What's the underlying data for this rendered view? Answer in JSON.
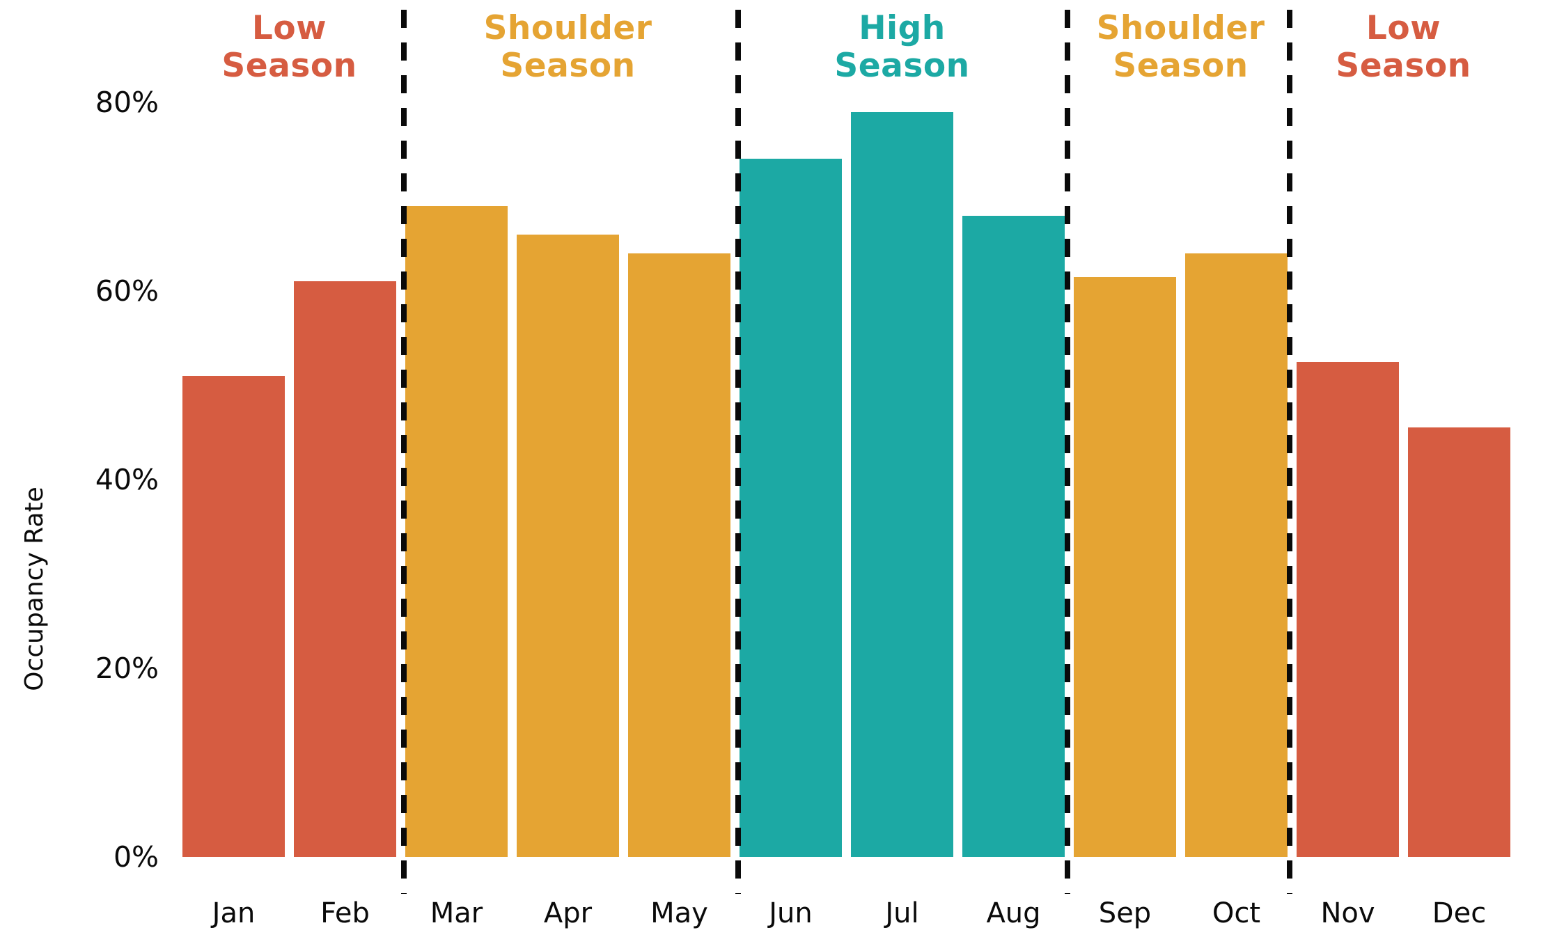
{
  "chart_data": {
    "type": "bar",
    "title": "",
    "xlabel": "",
    "ylabel": "Occupancy Rate",
    "ylim": [
      0,
      84
    ],
    "grid": false,
    "legend": "none",
    "categories": [
      "Jan",
      "Feb",
      "Mar",
      "Apr",
      "May",
      "Jun",
      "Jul",
      "Aug",
      "Sep",
      "Oct",
      "Nov",
      "Dec"
    ],
    "values": [
      51,
      61,
      69,
      66,
      64,
      74,
      79,
      68,
      61.5,
      64,
      52.5,
      45.5
    ],
    "bar_colors": [
      "#D65C41",
      "#D65C41",
      "#E5A433",
      "#E5A433",
      "#E5A433",
      "#1CA9A4",
      "#1CA9A4",
      "#1CA9A4",
      "#E5A433",
      "#E5A433",
      "#D65C41",
      "#D65C41"
    ],
    "yticks": [
      {
        "value": 0,
        "label": "0%"
      },
      {
        "value": 20,
        "label": "20%"
      },
      {
        "value": 40,
        "label": "40%"
      },
      {
        "value": 60,
        "label": "60%"
      },
      {
        "value": 80,
        "label": "80%"
      }
    ],
    "seasons": [
      {
        "label": "Low Season",
        "line1": "Low",
        "line2": "Season",
        "color": "#D65C41",
        "months": [
          "Jan",
          "Feb"
        ]
      },
      {
        "label": "Shoulder Season",
        "line1": "Shoulder",
        "line2": "Season",
        "color": "#E5A433",
        "months": [
          "Mar",
          "Apr",
          "May"
        ]
      },
      {
        "label": "High Season",
        "line1": "High",
        "line2": "Season",
        "color": "#1CA9A4",
        "months": [
          "Jun",
          "Jul",
          "Aug"
        ]
      },
      {
        "label": "Shoulder Season",
        "line1": "Shoulder",
        "line2": "Season",
        "color": "#E5A433",
        "months": [
          "Sep",
          "Oct"
        ]
      },
      {
        "label": "Low Season",
        "line1": "Low",
        "line2": "Season",
        "color": "#D65C41",
        "months": [
          "Nov",
          "Dec"
        ]
      }
    ],
    "separators": {
      "style": "dashed",
      "color": "#0a0a0a",
      "positions_between": [
        "Feb|Mar",
        "May|Jun",
        "Aug|Sep",
        "Oct|Nov"
      ]
    }
  }
}
